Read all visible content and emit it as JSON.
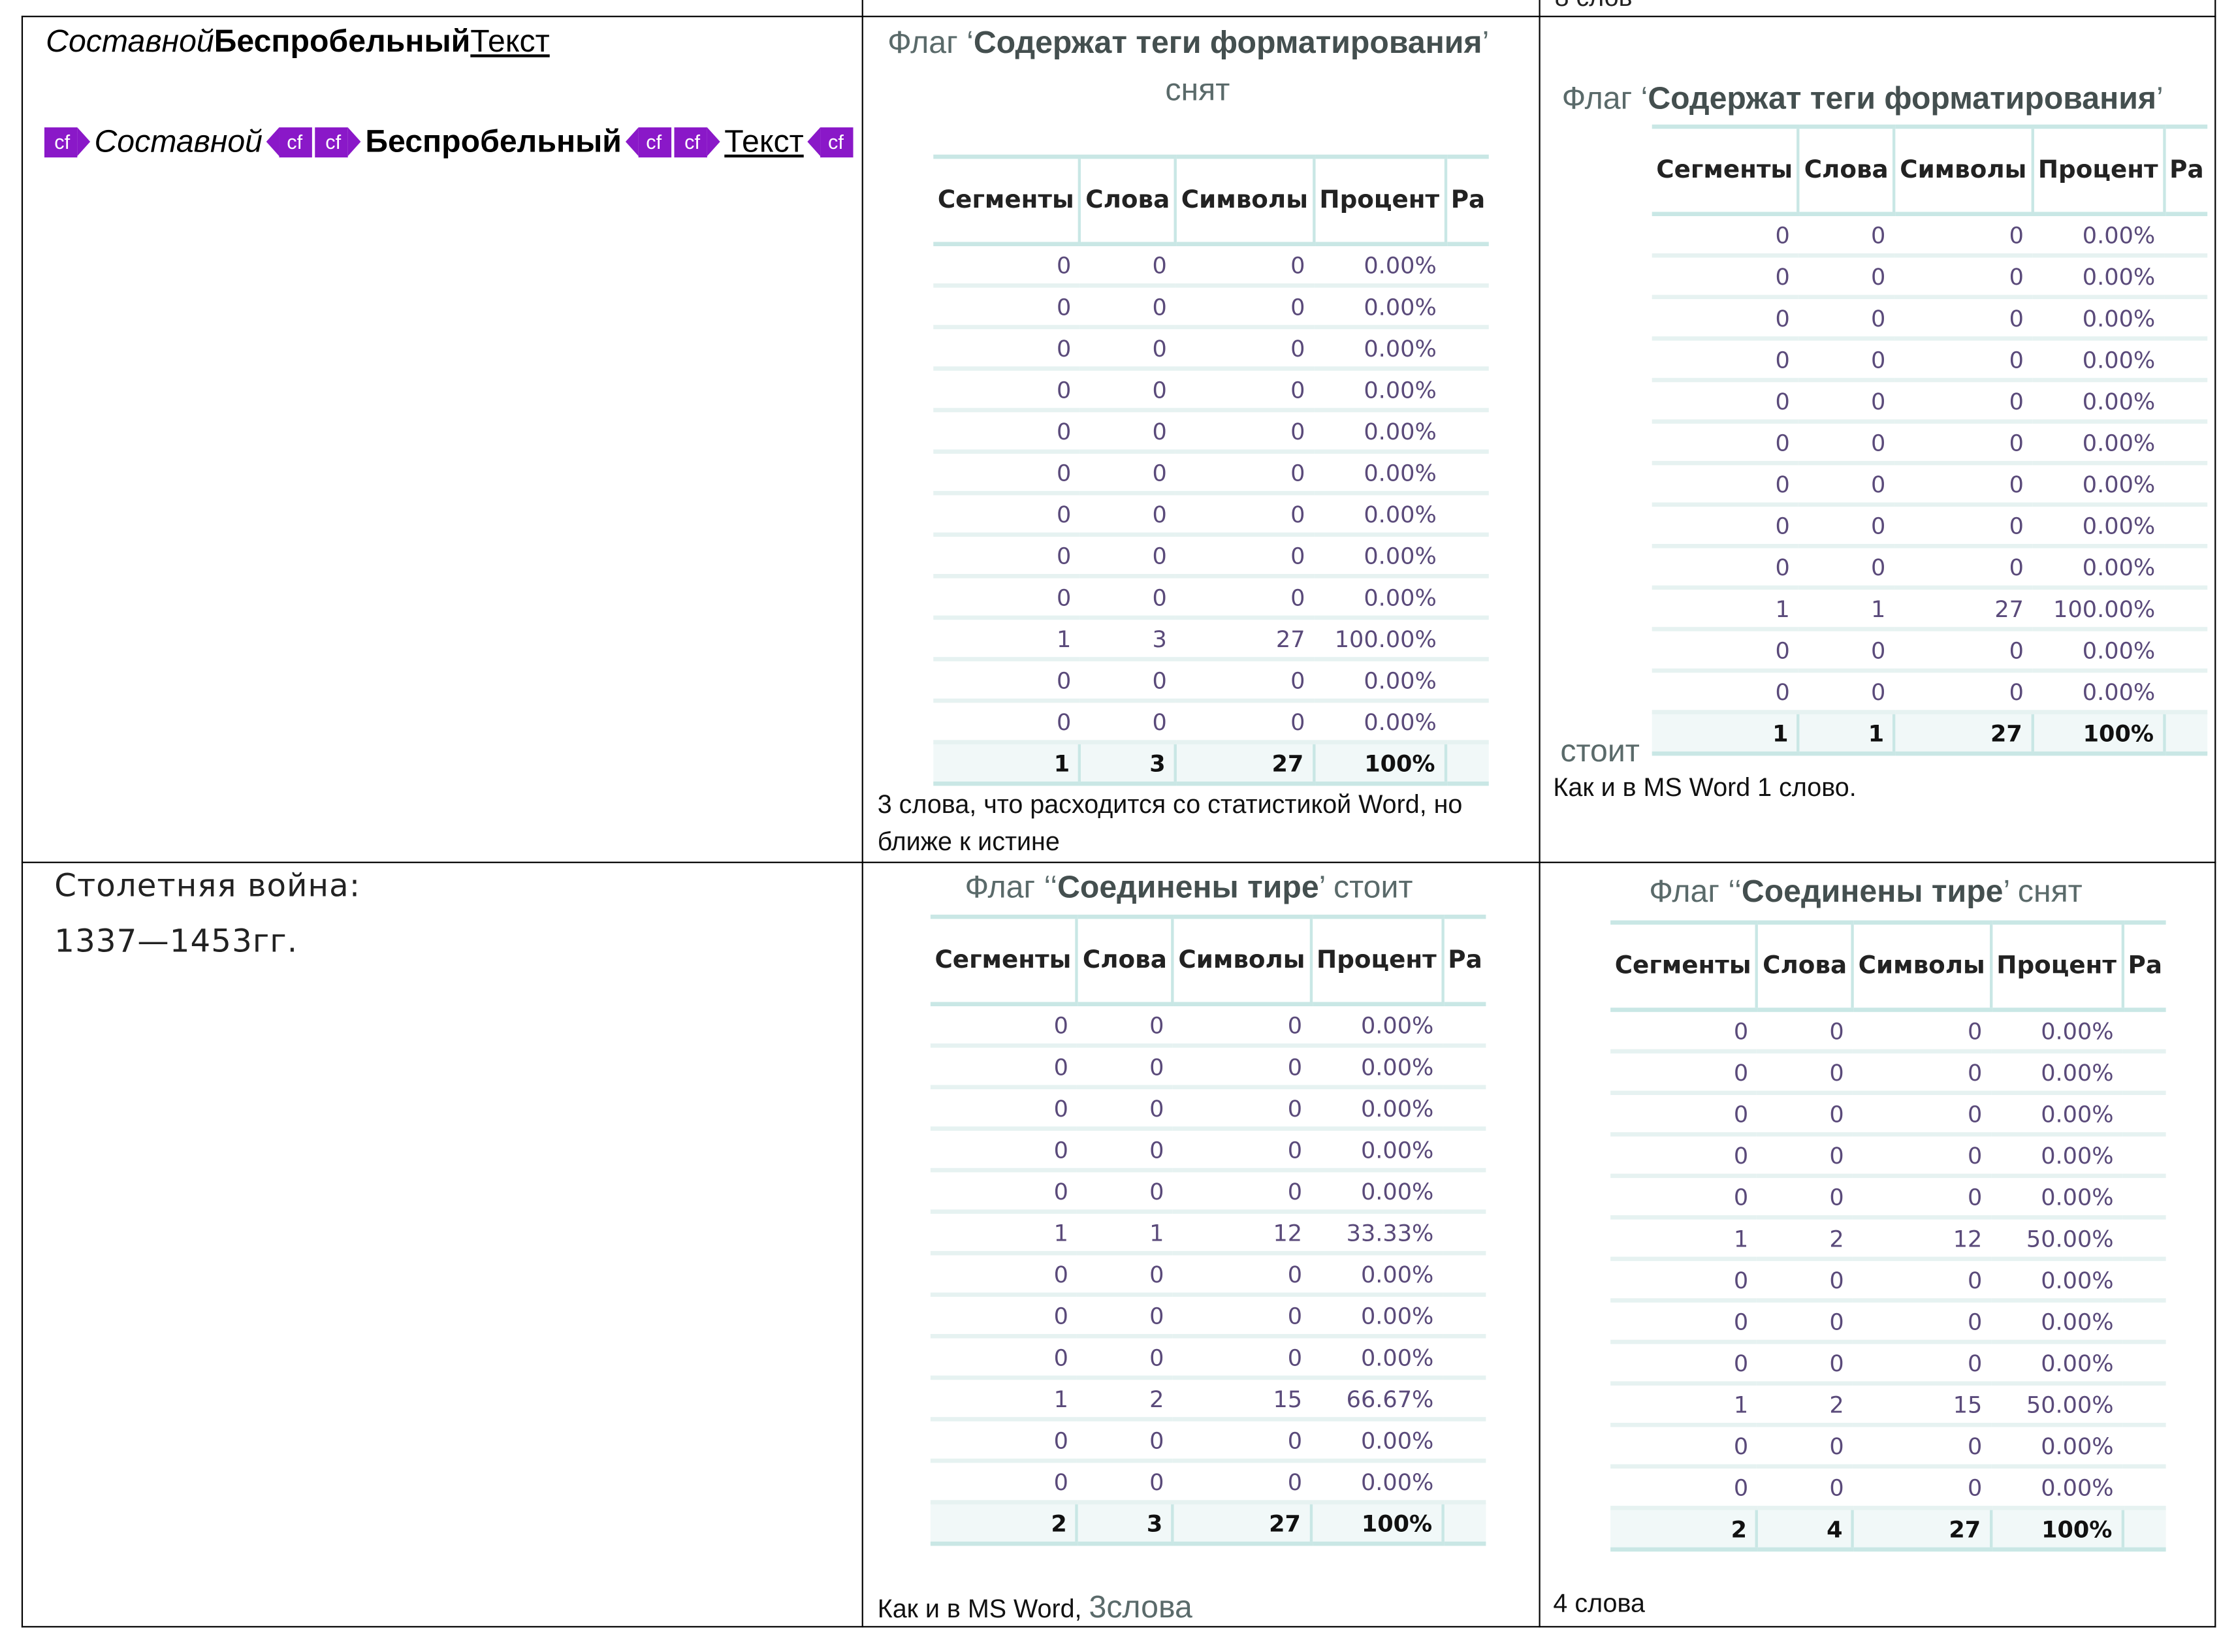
{
  "top_cut_text": "8 слов",
  "headers": [
    "Сегменты",
    "Слова",
    "Символы",
    "Процент",
    "Ра"
  ],
  "row1": {
    "sample": {
      "part1": "Составной",
      "part2": "Беспробельный",
      "part3": "Текст"
    },
    "tag_label": "cf",
    "middle": {
      "flag_prefix": "Флаг ‘",
      "flag_bold": "Содержат теги форматирования",
      "flag_suffix": "’",
      "flag_state": "снят",
      "rows": [
        [
          "0",
          "0",
          "0",
          "0.00%"
        ],
        [
          "0",
          "0",
          "0",
          "0.00%"
        ],
        [
          "0",
          "0",
          "0",
          "0.00%"
        ],
        [
          "0",
          "0",
          "0",
          "0.00%"
        ],
        [
          "0",
          "0",
          "0",
          "0.00%"
        ],
        [
          "0",
          "0",
          "0",
          "0.00%"
        ],
        [
          "0",
          "0",
          "0",
          "0.00%"
        ],
        [
          "0",
          "0",
          "0",
          "0.00%"
        ],
        [
          "0",
          "0",
          "0",
          "0.00%"
        ],
        [
          "1",
          "3",
          "27",
          "100.00%"
        ],
        [
          "0",
          "0",
          "0",
          "0.00%"
        ],
        [
          "0",
          "0",
          "0",
          "0.00%"
        ]
      ],
      "total": [
        "1",
        "3",
        "27",
        "100%"
      ],
      "note_line1": "3 слова, что расходится со статистикой Word, но",
      "note_line2": "ближе к истине"
    },
    "right": {
      "flag_prefix": "Флаг ‘",
      "flag_bold": "Содержат теги форматирования",
      "flag_suffix": "’",
      "flag_state": "стоит",
      "rows": [
        [
          "0",
          "0",
          "0",
          "0.00%"
        ],
        [
          "0",
          "0",
          "0",
          "0.00%"
        ],
        [
          "0",
          "0",
          "0",
          "0.00%"
        ],
        [
          "0",
          "0",
          "0",
          "0.00%"
        ],
        [
          "0",
          "0",
          "0",
          "0.00%"
        ],
        [
          "0",
          "0",
          "0",
          "0.00%"
        ],
        [
          "0",
          "0",
          "0",
          "0.00%"
        ],
        [
          "0",
          "0",
          "0",
          "0.00%"
        ],
        [
          "0",
          "0",
          "0",
          "0.00%"
        ],
        [
          "1",
          "1",
          "27",
          "100.00%"
        ],
        [
          "0",
          "0",
          "0",
          "0.00%"
        ],
        [
          "0",
          "0",
          "0",
          "0.00%"
        ]
      ],
      "total": [
        "1",
        "1",
        "27",
        "100%"
      ],
      "note": "Как и в MS Word 1 слово."
    }
  },
  "row2": {
    "war_line1": "Столетняя война:",
    "war_line2": "1337—1453гг.",
    "middle": {
      "flag_prefix": "Флаг ‘‘",
      "flag_bold": "Соединены тире",
      "flag_suffix": "’ стоит",
      "rows": [
        [
          "0",
          "0",
          "0",
          "0.00%"
        ],
        [
          "0",
          "0",
          "0",
          "0.00%"
        ],
        [
          "0",
          "0",
          "0",
          "0.00%"
        ],
        [
          "0",
          "0",
          "0",
          "0.00%"
        ],
        [
          "0",
          "0",
          "0",
          "0.00%"
        ],
        [
          "1",
          "1",
          "12",
          "33.33%"
        ],
        [
          "0",
          "0",
          "0",
          "0.00%"
        ],
        [
          "0",
          "0",
          "0",
          "0.00%"
        ],
        [
          "0",
          "0",
          "0",
          "0.00%"
        ],
        [
          "1",
          "2",
          "15",
          "66.67%"
        ],
        [
          "0",
          "0",
          "0",
          "0.00%"
        ],
        [
          "0",
          "0",
          "0",
          "0.00%"
        ]
      ],
      "total": [
        "2",
        "3",
        "27",
        "100%"
      ],
      "note_a": "Как и в MS Word, ",
      "note_b": "3слова"
    },
    "right": {
      "flag_prefix": "Флаг ‘‘",
      "flag_bold": "Соединены тире",
      "flag_suffix": "’ снят",
      "rows": [
        [
          "0",
          "0",
          "0",
          "0.00%"
        ],
        [
          "0",
          "0",
          "0",
          "0.00%"
        ],
        [
          "0",
          "0",
          "0",
          "0.00%"
        ],
        [
          "0",
          "0",
          "0",
          "0.00%"
        ],
        [
          "0",
          "0",
          "0",
          "0.00%"
        ],
        [
          "1",
          "2",
          "12",
          "50.00%"
        ],
        [
          "0",
          "0",
          "0",
          "0.00%"
        ],
        [
          "0",
          "0",
          "0",
          "0.00%"
        ],
        [
          "0",
          "0",
          "0",
          "0.00%"
        ],
        [
          "1",
          "2",
          "15",
          "50.00%"
        ],
        [
          "0",
          "0",
          "0",
          "0.00%"
        ],
        [
          "0",
          "0",
          "0",
          "0.00%"
        ]
      ],
      "total": [
        "2",
        "4",
        "27",
        "100%"
      ],
      "note": "4 слова"
    }
  }
}
